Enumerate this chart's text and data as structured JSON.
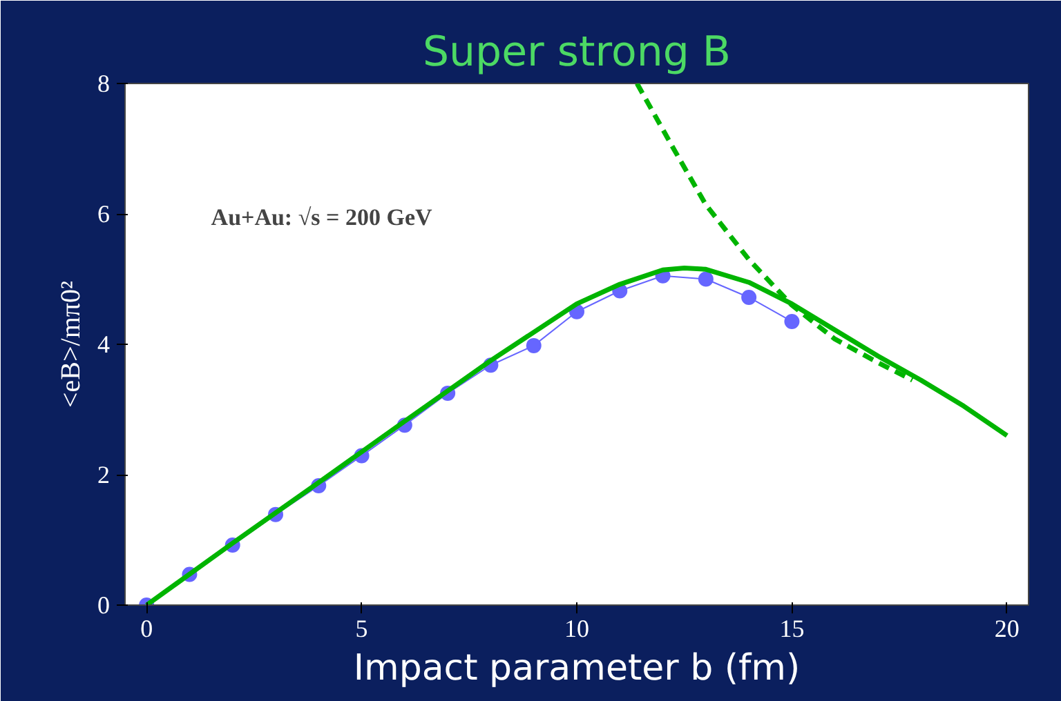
{
  "chart_data": {
    "type": "line",
    "title": "Super strong B",
    "xlabel": "Impact parameter b (fm)",
    "ylabel": "<eB>/mπ0²",
    "xlim": [
      -0.5,
      20.5
    ],
    "ylim": [
      0,
      8
    ],
    "xticks": [
      0,
      5,
      10,
      15,
      20
    ],
    "yticks": [
      0,
      2,
      4,
      6,
      8
    ],
    "grid": false,
    "annotations": [
      "Au+Au: √s = 200 GeV"
    ],
    "series": [
      {
        "color": "#6666ff",
        "marker": "circle",
        "line_style": "solid",
        "x": [
          0,
          1,
          2,
          3,
          4,
          5,
          6,
          7,
          8,
          9,
          10,
          11,
          12,
          13,
          14,
          15
        ],
        "values": [
          0,
          0.47,
          0.92,
          1.39,
          1.83,
          2.29,
          2.76,
          3.25,
          3.68,
          3.98,
          4.5,
          4.82,
          5.05,
          5.0,
          4.72,
          4.35
        ]
      },
      {
        "color": "#00b400",
        "marker": "none",
        "line_style": "solid",
        "x": [
          0,
          2,
          4,
          6,
          8,
          10,
          11,
          12,
          12.5,
          13,
          14,
          15,
          16,
          17,
          18,
          19,
          20
        ],
        "values": [
          0,
          0.95,
          1.88,
          2.82,
          3.75,
          4.62,
          4.92,
          5.14,
          5.17,
          5.15,
          4.95,
          4.62,
          4.22,
          3.82,
          3.45,
          3.05,
          2.6
        ]
      },
      {
        "color": "#00b400",
        "marker": "none",
        "line_style": "dashed",
        "x": [
          11.4,
          12.25,
          13,
          14,
          15,
          16,
          17,
          17.8
        ],
        "values": [
          8.0,
          7.0,
          6.14,
          5.3,
          4.6,
          4.08,
          3.72,
          3.45
        ]
      }
    ]
  }
}
